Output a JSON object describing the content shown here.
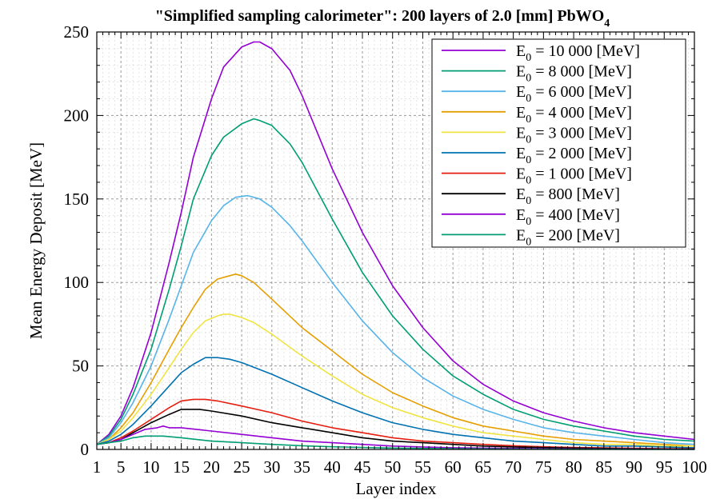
{
  "chart_data": {
    "type": "line",
    "title": {
      "prefix": "\"Simplified sampling calorimeter\": 200 layers of 2.0 [mm] PbWO",
      "subscript": "4"
    },
    "xlabel": "Layer index",
    "ylabel": "Mean Energy Deposit [MeV]",
    "xlim": [
      1,
      100
    ],
    "ylim": [
      0,
      250
    ],
    "xticks": [
      1,
      5,
      10,
      15,
      20,
      25,
      30,
      35,
      40,
      45,
      50,
      55,
      60,
      65,
      70,
      75,
      80,
      85,
      90,
      95,
      100
    ],
    "yticks": [
      0,
      50,
      100,
      150,
      200,
      250
    ],
    "grid": true,
    "legend_position": "top-right",
    "series": [
      {
        "name": "E0 = 10 000 [MeV]",
        "label_value": "= 10 000 [MeV]",
        "color": "#9400d3",
        "x": [
          1,
          3,
          5,
          7,
          10,
          13,
          15,
          17,
          20,
          22,
          25,
          27,
          28,
          30,
          33,
          35,
          40,
          45,
          50,
          55,
          60,
          65,
          70,
          75,
          80,
          85,
          90,
          95,
          100
        ],
        "y": [
          3,
          9,
          20,
          37,
          70,
          112,
          142,
          175,
          210,
          229,
          241,
          244,
          244,
          240,
          227,
          212,
          168,
          130,
          98,
          73,
          53,
          39,
          29,
          22,
          17,
          13,
          10,
          8,
          6
        ]
      },
      {
        "name": "E0 = 8 000 [MeV]",
        "label_value": "=   8 000 [MeV]",
        "color": "#009e73",
        "x": [
          1,
          3,
          5,
          7,
          10,
          13,
          15,
          17,
          20,
          22,
          25,
          27,
          28,
          30,
          33,
          35,
          40,
          45,
          50,
          55,
          60,
          65,
          70,
          75,
          80,
          85,
          90,
          95,
          100
        ],
        "y": [
          3,
          8,
          18,
          33,
          60,
          96,
          122,
          150,
          176,
          187,
          195,
          198,
          197,
          194,
          183,
          172,
          138,
          106,
          80,
          60,
          44,
          33,
          24,
          18,
          14,
          11,
          8,
          6,
          5
        ]
      },
      {
        "name": "E0 = 6 000 [MeV]",
        "label_value": "=   6 000 [MeV]",
        "color": "#56b4e9",
        "x": [
          1,
          3,
          5,
          7,
          10,
          13,
          15,
          17,
          20,
          22,
          24,
          26,
          28,
          30,
          33,
          35,
          40,
          45,
          50,
          55,
          60,
          65,
          70,
          75,
          80,
          85,
          90,
          95,
          100
        ],
        "y": [
          3,
          7,
          16,
          28,
          50,
          78,
          98,
          118,
          137,
          146,
          151,
          152,
          150,
          145,
          134,
          125,
          100,
          77,
          58,
          43,
          32,
          24,
          18,
          13,
          10,
          8,
          6,
          4,
          3
        ]
      },
      {
        "name": "E0 = 4 000 [MeV]",
        "label_value": "=   4 000 [MeV]",
        "color": "#e69f00",
        "x": [
          1,
          3,
          5,
          7,
          10,
          13,
          15,
          17,
          19,
          21,
          23,
          24,
          25,
          27,
          30,
          35,
          40,
          45,
          50,
          55,
          60,
          65,
          70,
          75,
          80,
          85,
          90,
          95,
          100
        ],
        "y": [
          3,
          6,
          13,
          22,
          40,
          60,
          73,
          85,
          96,
          102,
          104,
          105,
          104,
          100,
          90,
          73,
          59,
          45,
          34,
          26,
          19,
          14,
          11,
          8,
          6,
          5,
          4,
          3,
          2
        ]
      },
      {
        "name": "E0 = 3 000 [MeV]",
        "label_value": "=   3 000 [MeV]",
        "color": "#f0e442",
        "x": [
          1,
          3,
          5,
          7,
          10,
          13,
          15,
          17,
          19,
          21,
          22,
          23,
          25,
          27,
          30,
          35,
          40,
          45,
          50,
          55,
          60,
          65,
          70,
          75,
          80,
          85,
          90,
          95,
          100
        ],
        "y": [
          3,
          6,
          11,
          19,
          33,
          49,
          60,
          70,
          77,
          80,
          81,
          81,
          79,
          76,
          69,
          56,
          44,
          33,
          25,
          19,
          14,
          10,
          8,
          6,
          4,
          3,
          3,
          2,
          2
        ]
      },
      {
        "name": "E0 = 2 000 [MeV]",
        "label_value": "=   2 000 [MeV]",
        "color": "#0072b2",
        "x": [
          1,
          3,
          5,
          7,
          10,
          13,
          15,
          17,
          19,
          20,
          21,
          23,
          25,
          30,
          35,
          40,
          45,
          50,
          55,
          60,
          65,
          70,
          75,
          80,
          85,
          90,
          95,
          100
        ],
        "y": [
          3,
          5,
          9,
          15,
          26,
          38,
          46,
          51,
          55,
          55,
          55,
          54,
          52,
          45,
          37,
          29,
          22,
          16,
          12,
          9,
          7,
          5,
          4,
          3,
          2,
          2,
          1.5,
          1
        ]
      },
      {
        "name": "E0 = 1 000 [MeV]",
        "label_value": "=   1 000 [MeV]",
        "color": "#e51e10",
        "x": [
          1,
          3,
          5,
          7,
          10,
          13,
          15,
          17,
          19,
          21,
          25,
          30,
          35,
          40,
          45,
          50,
          55,
          60,
          65,
          70,
          75,
          80,
          85,
          90,
          95,
          100
        ],
        "y": [
          3,
          4,
          7,
          11,
          18,
          25,
          29,
          30,
          30,
          29,
          26,
          22,
          17,
          13,
          10,
          7,
          5,
          4,
          3,
          2.2,
          1.6,
          1.2,
          0.9,
          0.7,
          0.5,
          0.4
        ]
      },
      {
        "name": "E0 = 800 [MeV]",
        "label_value": "=      800 [MeV]",
        "color": "#000000",
        "x": [
          1,
          3,
          5,
          7,
          10,
          13,
          15,
          16,
          18,
          20,
          25,
          30,
          35,
          40,
          45,
          50,
          55,
          60,
          65,
          70,
          75,
          80,
          85,
          90,
          95,
          100
        ],
        "y": [
          3,
          4,
          6,
          10,
          16,
          21,
          24,
          24,
          24,
          23,
          20,
          16,
          13,
          10,
          7,
          5,
          4,
          3,
          2,
          1.5,
          1.1,
          0.8,
          0.6,
          0.4,
          0.3,
          0.2
        ]
      },
      {
        "name": "E0 = 400 [MeV]",
        "label_value": "=      400 [MeV]",
        "color": "#9400d3",
        "x": [
          1,
          3,
          5,
          7,
          9,
          11,
          12,
          13,
          15,
          20,
          25,
          30,
          35,
          40,
          45,
          50,
          55,
          60,
          70,
          80,
          90,
          100
        ],
        "y": [
          3,
          4,
          6,
          9,
          12,
          13,
          14,
          13,
          13,
          11,
          9,
          7,
          5,
          4,
          3,
          2,
          1.5,
          1,
          0.6,
          0.3,
          0.2,
          0.1
        ]
      },
      {
        "name": "E0 = 200 [MeV]",
        "label_value": "=      200 [MeV]",
        "color": "#009e73",
        "x": [
          1,
          3,
          5,
          7,
          9,
          10,
          12,
          15,
          20,
          25,
          30,
          35,
          40,
          45,
          50,
          60,
          70,
          80,
          90,
          100
        ],
        "y": [
          3,
          4,
          5,
          7,
          8,
          8,
          8,
          7,
          5,
          4,
          3,
          2.2,
          1.6,
          1.2,
          0.8,
          0.4,
          0.2,
          0.1,
          0.05,
          0.02
        ]
      }
    ]
  }
}
